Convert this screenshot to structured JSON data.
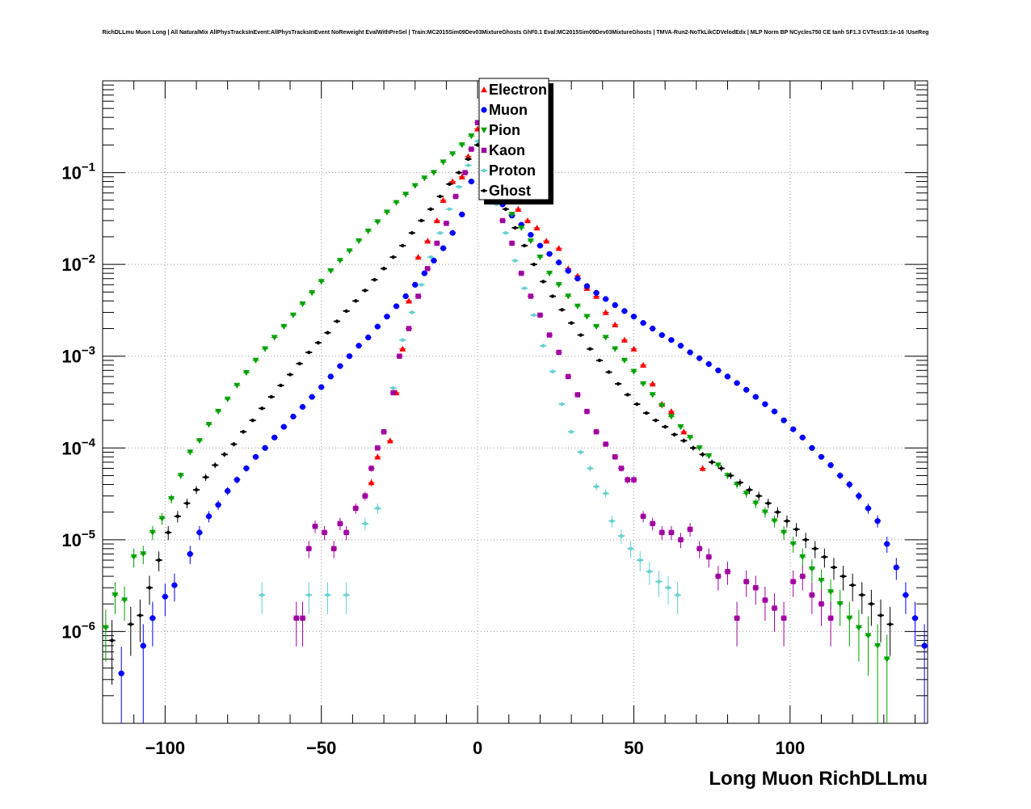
{
  "chart_data": {
    "type": "scatter",
    "title": "RichDLLmu Muon Long | All NaturalMix AllPhysTracksInEvent:AllPhysTracksInEvent NoReweight EvalWithPreSel | Train:MC2015Sim09Dev03MixtureGhosts GhF0.1 Eval:MC2015Sim09Dev03MixtureGhosts | TMVA-Run2-NoTkLikCDVelodEdx | MLP Norm BP NCycles750 CE tanh SF1.3 CVTest15:1e-16 !UseReg",
    "xlabel": "Long Muon RichDLLmu",
    "ylabel": "",
    "xlim": [
      -120,
      144
    ],
    "ylim": [
      1e-07,
      1
    ],
    "yscale": "log",
    "grid": true,
    "legend_position": "top-center",
    "x_tick_labels": [
      "−100",
      "−50",
      "0",
      "50",
      "100"
    ],
    "x_ticks": [
      -100,
      -50,
      0,
      50,
      100
    ],
    "y_tick_labels": [
      {
        "base": "10",
        "exp": "−6",
        "value": 1e-06
      },
      {
        "base": "10",
        "exp": "−5",
        "value": 1e-05
      },
      {
        "base": "10",
        "exp": "−4",
        "value": 0.0001
      },
      {
        "base": "10",
        "exp": "−3",
        "value": 0.001
      },
      {
        "base": "10",
        "exp": "−2",
        "value": 0.01
      },
      {
        "base": "10",
        "exp": "−1",
        "value": 0.1
      }
    ],
    "series": [
      {
        "name": "Electron",
        "color": "#ff0000",
        "marker": "triangle-up",
        "x": [
          -34,
          -32,
          -28,
          -26,
          -24,
          -22,
          -19,
          -16,
          -13,
          -11,
          -8,
          -5,
          -3,
          0,
          3,
          6,
          9,
          13,
          16,
          19,
          22,
          26,
          29,
          32,
          35,
          38,
          41,
          44,
          47,
          50,
          53,
          56,
          59,
          62,
          66,
          72
        ],
        "y": [
          4.2e-05,
          8e-05,
          0.00012,
          0.0004,
          0.0012,
          0.004,
          0.012,
          0.018,
          0.03,
          0.05,
          0.08,
          0.09,
          0.15,
          0.3,
          0.12,
          0.08,
          0.06,
          0.04,
          0.03,
          0.025,
          0.018,
          0.015,
          0.009,
          0.0075,
          0.0055,
          0.0045,
          0.003,
          0.0022,
          0.0015,
          0.0012,
          0.0008,
          0.0005,
          0.0003,
          0.00025,
          0.00015,
          6e-05
        ]
      },
      {
        "name": "Muon",
        "color": "#0000ff",
        "marker": "circle",
        "x": [
          -114,
          -107,
          -104,
          -100,
          -97,
          -92,
          -89,
          -86,
          -83,
          -80,
          -77,
          -74,
          -71,
          -68,
          -65,
          -62,
          -59,
          -56,
          -53,
          -50,
          -47,
          -44,
          -41,
          -38,
          -35,
          -32,
          -29,
          -26,
          -23,
          -20,
          -17,
          -14,
          -11,
          -8,
          -5,
          -2,
          2,
          5,
          8,
          11,
          14,
          17,
          20,
          23,
          26,
          29,
          32,
          35,
          38,
          41,
          44,
          47,
          50,
          53,
          56,
          59,
          62,
          65,
          68,
          71,
          74,
          77,
          80,
          83,
          86,
          89,
          92,
          95,
          98,
          101,
          104,
          107,
          110,
          113,
          116,
          119,
          122,
          125,
          128,
          131,
          134,
          137,
          140,
          143
        ],
        "y": [
          3.5e-07,
          7e-07,
          1.4e-06,
          2.4e-06,
          3.2e-06,
          7e-06,
          1.2e-05,
          1.8e-05,
          2.4e-05,
          3.4e-05,
          4.5e-05,
          6e-05,
          8e-05,
          0.0001,
          0.00013,
          0.00017,
          0.00022,
          0.00028,
          0.00036,
          0.00046,
          0.0006,
          0.00078,
          0.001,
          0.0013,
          0.0016,
          0.0021,
          0.0027,
          0.0035,
          0.0045,
          0.006,
          0.008,
          0.011,
          0.015,
          0.022,
          0.035,
          0.08,
          0.12,
          0.06,
          0.045,
          0.034,
          0.027,
          0.021,
          0.016,
          0.013,
          0.0105,
          0.0085,
          0.007,
          0.0058,
          0.0049,
          0.0042,
          0.0036,
          0.0031,
          0.0027,
          0.0023,
          0.002,
          0.0017,
          0.0015,
          0.0013,
          0.0011,
          0.00095,
          0.00082,
          0.0007,
          0.0006,
          0.00051,
          0.00043,
          0.00036,
          0.0003,
          0.00025,
          0.0002,
          0.00016,
          0.00013,
          0.0001,
          8e-05,
          6.5e-05,
          5e-05,
          4e-05,
          3e-05,
          2.2e-05,
          1.6e-05,
          9e-06,
          5e-06,
          2.5e-06,
          1.4e-06,
          7e-07
        ]
      },
      {
        "name": "Pion",
        "color": "#00a000",
        "marker": "triangle-down",
        "x": [
          -119,
          -116,
          -113,
          -110,
          -107,
          -104,
          -101,
          -98,
          -95,
          -92,
          -89,
          -86,
          -83,
          -80,
          -77,
          -74,
          -71,
          -68,
          -65,
          -62,
          -59,
          -56,
          -53,
          -50,
          -47,
          -44,
          -41,
          -38,
          -35,
          -32,
          -29,
          -26,
          -23,
          -20,
          -17,
          -14,
          -11,
          -8,
          -5,
          -2,
          2,
          5,
          8,
          11,
          14,
          17,
          20,
          23,
          26,
          29,
          32,
          35,
          38,
          41,
          44,
          47,
          50,
          53,
          56,
          59,
          62,
          65,
          68,
          71,
          74,
          77,
          80,
          83,
          86,
          89,
          92,
          95,
          98,
          101,
          104,
          107,
          110,
          113,
          116,
          119,
          122,
          125,
          128,
          131
        ],
        "y": [
          1.1e-06,
          2.5e-06,
          2.2e-06,
          6.5e-06,
          7e-06,
          1.2e-05,
          1.7e-05,
          2.8e-05,
          5e-05,
          9e-05,
          0.00012,
          0.00018,
          0.00025,
          0.00034,
          0.00048,
          0.00066,
          0.0009,
          0.0012,
          0.0016,
          0.0021,
          0.0028,
          0.0037,
          0.0049,
          0.0065,
          0.0085,
          0.011,
          0.014,
          0.018,
          0.023,
          0.029,
          0.037,
          0.047,
          0.058,
          0.072,
          0.087,
          0.1,
          0.13,
          0.16,
          0.2,
          0.25,
          0.3,
          0.1,
          0.05,
          0.035,
          0.025,
          0.018,
          0.012,
          0.008,
          0.006,
          0.0045,
          0.0035,
          0.0027,
          0.0021,
          0.0016,
          0.0012,
          0.0009,
          0.00068,
          0.0005,
          0.00038,
          0.00029,
          0.00022,
          0.00017,
          0.00013,
          0.0001,
          8.2e-05,
          6.5e-05,
          5e-05,
          4e-05,
          3.2e-05,
          2.5e-05,
          2e-05,
          1.6e-05,
          1.2e-05,
          9e-06,
          6.5e-06,
          4.8e-06,
          3.6e-06,
          2.7e-06,
          2e-06,
          1.4e-06,
          1.1e-06,
          9e-07,
          7e-07,
          5e-07
        ]
      },
      {
        "name": "Kaon",
        "color": "#a000a0",
        "marker": "square",
        "x": [
          -58,
          -56,
          -54,
          -52,
          -49,
          -46,
          -44,
          -42,
          -39,
          -36,
          -34,
          -32,
          -30,
          -27,
          -25,
          -22,
          -19,
          -16,
          -13,
          -10,
          -7,
          -4,
          -2,
          0,
          2,
          5,
          8,
          11,
          14,
          17,
          20,
          23,
          26,
          29,
          32,
          35,
          38,
          41,
          44,
          46,
          48,
          50,
          53,
          56,
          59,
          62,
          65,
          68,
          71,
          74,
          77,
          80,
          83,
          86,
          89,
          92,
          95,
          98,
          101,
          104,
          107,
          110,
          113
        ],
        "y": [
          1.4e-06,
          1.4e-06,
          8e-06,
          1.4e-05,
          1.2e-05,
          8e-06,
          1.5e-05,
          1.2e-05,
          2.2e-05,
          3e-05,
          6e-05,
          0.0001,
          0.00015,
          0.0004,
          0.001,
          0.002,
          0.0045,
          0.009,
          0.017,
          0.028,
          0.055,
          0.1,
          0.18,
          0.35,
          0.12,
          0.06,
          0.03,
          0.017,
          0.008,
          0.0045,
          0.0028,
          0.0017,
          0.0011,
          0.0006,
          0.00038,
          0.00025,
          0.00015,
          0.00011,
          8e-05,
          6e-05,
          4.5e-05,
          4.5e-05,
          1.8e-05,
          1.5e-05,
          1.2e-05,
          1.2e-05,
          1e-05,
          1.3e-05,
          8e-06,
          6.5e-06,
          4e-06,
          4.5e-06,
          1.4e-06,
          3.5e-06,
          3e-06,
          2.2e-06,
          1.8e-06,
          1.4e-06,
          3.5e-06,
          4e-06,
          2.5e-06,
          2e-06,
          1.4e-06
        ]
      },
      {
        "name": "Proton",
        "color": "#60d0d0",
        "marker": "cross",
        "x": [
          -69,
          -54,
          -48,
          -42,
          -36,
          -32,
          -27,
          -24,
          -21,
          -18,
          -15,
          -12,
          -9,
          -6,
          -3,
          0,
          3,
          6,
          9,
          12,
          15,
          18,
          21,
          24,
          27,
          30,
          33,
          36,
          38,
          41,
          43,
          46,
          49,
          52,
          55,
          58,
          61,
          64
        ],
        "y": [
          2.5e-06,
          2.5e-06,
          2.5e-06,
          2.5e-06,
          1.5e-05,
          2.2e-05,
          0.00045,
          0.0015,
          0.003,
          0.006,
          0.012,
          0.022,
          0.04,
          0.07,
          0.12,
          0.22,
          0.09,
          0.045,
          0.022,
          0.011,
          0.0055,
          0.0028,
          0.0013,
          0.00068,
          0.0003,
          0.00015,
          9e-05,
          6e-05,
          3.8e-05,
          3.2e-05,
          1.6e-05,
          1.1e-05,
          8e-06,
          6e-06,
          4.5e-06,
          3.5e-06,
          3e-06,
          2.5e-06
        ]
      },
      {
        "name": "Ghost",
        "color": "#000000",
        "marker": "cross",
        "x": [
          -117,
          -111,
          -108,
          -105,
          -102,
          -99,
          -96,
          -93,
          -90,
          -87,
          -84,
          -81,
          -78,
          -75,
          -72,
          -69,
          -66,
          -63,
          -60,
          -57,
          -54,
          -51,
          -48,
          -45,
          -42,
          -39,
          -36,
          -33,
          -30,
          -27,
          -24,
          -21,
          -18,
          -15,
          -12,
          -9,
          -6,
          -3,
          0,
          3,
          6,
          9,
          12,
          15,
          18,
          21,
          24,
          27,
          30,
          33,
          36,
          39,
          42,
          45,
          48,
          51,
          54,
          57,
          60,
          63,
          66,
          69,
          72,
          75,
          78,
          81,
          84,
          87,
          90,
          93,
          96,
          99,
          102,
          105,
          108,
          111,
          114,
          117,
          120,
          123,
          126,
          129,
          132
        ],
        "y": [
          8e-07,
          1.2e-06,
          1.5e-06,
          3e-06,
          6e-06,
          1.2e-05,
          1.8e-05,
          2.5e-05,
          3.5e-05,
          4.8e-05,
          6.5e-05,
          8.5e-05,
          0.00011,
          0.00015,
          0.0002,
          0.00027,
          0.00036,
          0.00048,
          0.00063,
          0.00083,
          0.0011,
          0.0014,
          0.0018,
          0.0024,
          0.0031,
          0.004,
          0.0052,
          0.0068,
          0.009,
          0.012,
          0.016,
          0.022,
          0.03,
          0.04,
          0.055,
          0.075,
          0.1,
          0.14,
          0.2,
          0.1,
          0.06,
          0.04,
          0.025,
          0.016,
          0.01,
          0.0065,
          0.0045,
          0.0032,
          0.0023,
          0.0017,
          0.0012,
          0.0009,
          0.00067,
          0.0005,
          0.00038,
          0.0003,
          0.00024,
          0.0002,
          0.00017,
          0.00014,
          0.00012,
          0.0001,
          8.5e-05,
          7e-05,
          6e-05,
          5e-05,
          4.2e-05,
          3.5e-05,
          3e-05,
          2.5e-05,
          2e-05,
          1.6e-05,
          1.3e-05,
          1e-05,
          8e-06,
          6.5e-06,
          5e-06,
          4e-06,
          3.2e-06,
          2.5e-06,
          2e-06,
          1.5e-06,
          1.2e-06
        ]
      }
    ]
  }
}
